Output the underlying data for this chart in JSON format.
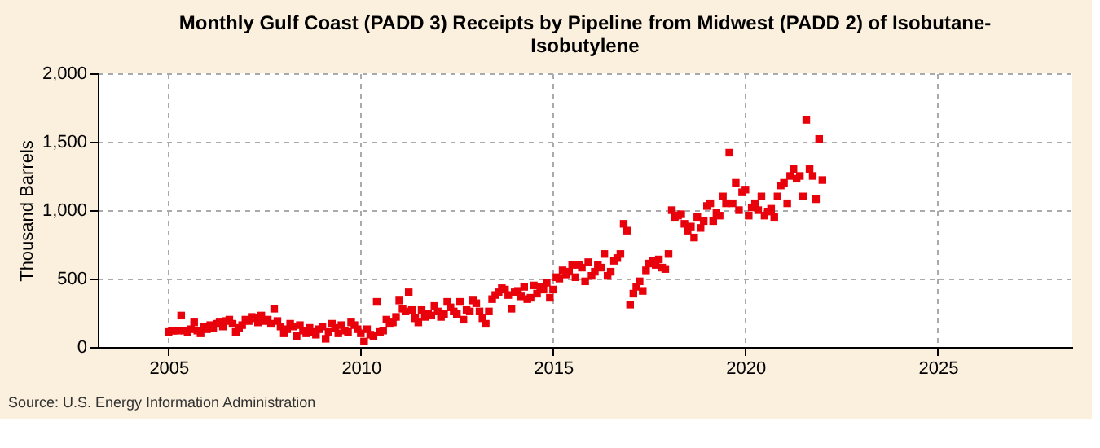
{
  "chart_data": {
    "type": "scatter",
    "title": "Monthly Gulf Coast (PADD 3) Receipts by Pipeline from Midwest (PADD 2) of Isobutane-Isobutylene",
    "ylabel": "Thousand Barrels",
    "annotations": [
      "Source: U.S. Energy Information Administration"
    ],
    "x": [
      "2005-01",
      "2005-02",
      "2005-03",
      "2005-04",
      "2005-05",
      "2005-06",
      "2005-07",
      "2005-08",
      "2005-09",
      "2005-10",
      "2005-11",
      "2005-12",
      "2006-01",
      "2006-02",
      "2006-03",
      "2006-04",
      "2006-05",
      "2006-06",
      "2006-07",
      "2006-08",
      "2006-09",
      "2006-10",
      "2006-11",
      "2006-12",
      "2007-01",
      "2007-02",
      "2007-03",
      "2007-04",
      "2007-05",
      "2007-06",
      "2007-07",
      "2007-08",
      "2007-09",
      "2007-10",
      "2007-11",
      "2007-12",
      "2008-01",
      "2008-02",
      "2008-03",
      "2008-04",
      "2008-05",
      "2008-06",
      "2008-07",
      "2008-08",
      "2008-09",
      "2008-10",
      "2008-11",
      "2008-12",
      "2009-01",
      "2009-02",
      "2009-03",
      "2009-04",
      "2009-05",
      "2009-06",
      "2009-07",
      "2009-08",
      "2009-09",
      "2009-10",
      "2009-11",
      "2009-12",
      "2010-01",
      "2010-02",
      "2010-03",
      "2010-04",
      "2010-05",
      "2010-06",
      "2010-07",
      "2010-08",
      "2010-09",
      "2010-10",
      "2010-11",
      "2010-12",
      "2011-01",
      "2011-02",
      "2011-03",
      "2011-04",
      "2011-05",
      "2011-06",
      "2011-07",
      "2011-08",
      "2011-09",
      "2011-10",
      "2011-11",
      "2011-12",
      "2012-01",
      "2012-02",
      "2012-03",
      "2012-04",
      "2012-05",
      "2012-06",
      "2012-07",
      "2012-08",
      "2012-09",
      "2012-10",
      "2012-11",
      "2012-12",
      "2013-01",
      "2013-02",
      "2013-03",
      "2013-04",
      "2013-05",
      "2013-06",
      "2013-07",
      "2013-08",
      "2013-09",
      "2013-10",
      "2013-11",
      "2013-12",
      "2014-01",
      "2014-02",
      "2014-03",
      "2014-04",
      "2014-05",
      "2014-06",
      "2014-07",
      "2014-08",
      "2014-09",
      "2014-10",
      "2014-11",
      "2014-12",
      "2015-01",
      "2015-02",
      "2015-03",
      "2015-04",
      "2015-05",
      "2015-06",
      "2015-07",
      "2015-08",
      "2015-09",
      "2015-10",
      "2015-11",
      "2015-12",
      "2016-01",
      "2016-02",
      "2016-03",
      "2016-04",
      "2016-05",
      "2016-06",
      "2016-07",
      "2016-08",
      "2016-09",
      "2016-10",
      "2016-11",
      "2016-12",
      "2017-01",
      "2017-02",
      "2017-03",
      "2017-04",
      "2017-05",
      "2017-06",
      "2017-07",
      "2017-08",
      "2017-09",
      "2017-10",
      "2017-11",
      "2017-12",
      "2018-01",
      "2018-02",
      "2018-03",
      "2018-04",
      "2018-05",
      "2018-06",
      "2018-07",
      "2018-08",
      "2018-09",
      "2018-10",
      "2018-11",
      "2018-12",
      "2019-01",
      "2019-02",
      "2019-03",
      "2019-04",
      "2019-05",
      "2019-06",
      "2019-07",
      "2019-08",
      "2019-09",
      "2019-10",
      "2019-11",
      "2019-12",
      "2020-01",
      "2020-02",
      "2020-03",
      "2020-04",
      "2020-05",
      "2020-06",
      "2020-07",
      "2020-08",
      "2020-09",
      "2020-10",
      "2020-11",
      "2020-12",
      "2021-01",
      "2021-02",
      "2021-03",
      "2021-04",
      "2021-05",
      "2021-06",
      "2021-07",
      "2021-08",
      "2021-09",
      "2021-10",
      "2021-11",
      "2021-12",
      "2022-01"
    ],
    "series": [
      {
        "color": "#e8000b",
        "values": [
          110,
          120,
          120,
          120,
          230,
          120,
          110,
          130,
          180,
          120,
          100,
          150,
          130,
          160,
          140,
          170,
          180,
          150,
          190,
          200,
          170,
          110,
          140,
          160,
          200,
          190,
          220,
          210,
          180,
          230,
          190,
          200,
          170,
          280,
          190,
          150,
          100,
          130,
          170,
          150,
          80,
          160,
          120,
          100,
          140,
          110,
          90,
          130,
          150,
          60,
          110,
          170,
          140,
          100,
          160,
          120,
          110,
          180,
          160,
          130,
          100,
          40,
          130,
          90,
          80,
          330,
          110,
          120,
          200,
          170,
          180,
          220,
          340,
          280,
          260,
          400,
          270,
          210,
          180,
          270,
          220,
          240,
          230,
          300,
          260,
          220,
          240,
          330,
          290,
          260,
          240,
          330,
          200,
          270,
          260,
          340,
          320,
          260,
          210,
          170,
          260,
          350,
          380,
          400,
          430,
          420,
          380,
          280,
          400,
          410,
          370,
          440,
          350,
          360,
          450,
          390,
          440,
          420,
          470,
          360,
          420,
          510,
          500,
          560,
          530,
          550,
          600,
          510,
          600,
          580,
          480,
          620,
          520,
          550,
          600,
          580,
          680,
          520,
          550,
          630,
          650,
          680,
          900,
          850,
          310,
          390,
          440,
          480,
          410,
          560,
          610,
          630,
          600,
          640,
          580,
          570,
          680,
          1000,
          950,
          960,
          970,
          900,
          850,
          880,
          800,
          950,
          870,
          920,
          1030,
          1050,
          920,
          980,
          960,
          1100,
          1050,
          1420,
          1050,
          1200,
          1000,
          1130,
          1150,
          960,
          1020,
          1050,
          1000,
          1100,
          960,
          990,
          1010,
          950,
          1100,
          1180,
          1200,
          1050,
          1250,
          1300,
          1230,
          1250,
          1100,
          1660,
          1300,
          1250,
          1080,
          1520,
          1220
        ]
      }
    ],
    "xlim": [
      "2003-03",
      "2028-07"
    ],
    "xticks": [
      "2005",
      "2010",
      "2015",
      "2020",
      "2025"
    ],
    "ylim": [
      0,
      2000
    ],
    "yticks": [
      0,
      {
        "value": 500,
        "label": "500"
      },
      {
        "value": 1000,
        "label": "1,000"
      },
      {
        "value": 1500,
        "label": "1,500"
      },
      {
        "value": 2000,
        "label": "2,000"
      }
    ],
    "grid": true,
    "marker": "square"
  }
}
